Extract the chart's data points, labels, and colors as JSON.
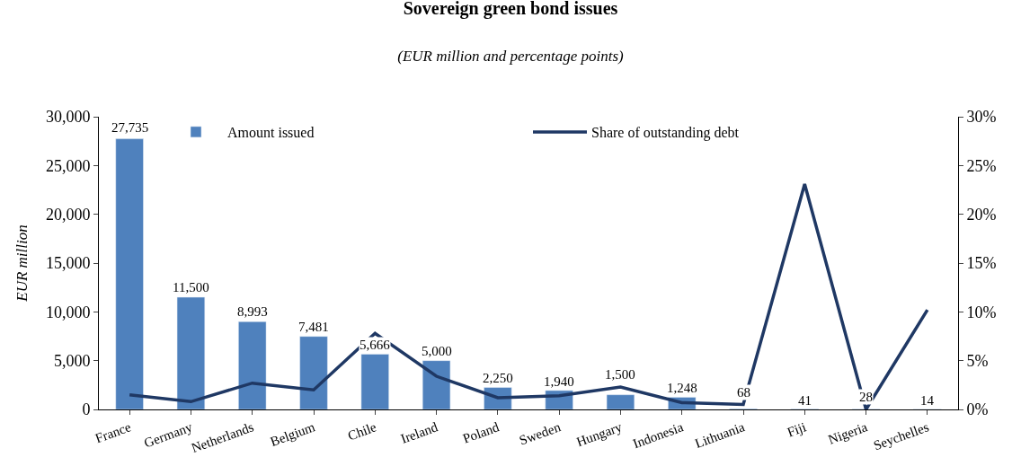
{
  "chart_data": {
    "type": "bar",
    "title": "Sovereign green bond issues",
    "subtitle": "(EUR million and percentage points)",
    "ylabel": "EUR million",
    "categories": [
      "France",
      "Germany",
      "Netherlands",
      "Belgium",
      "Chile",
      "Ireland",
      "Poland",
      "Sweden",
      "Hungary",
      "Indonesia",
      "Lithuania",
      "Fiji",
      "Nigeria",
      "Seychelles"
    ],
    "series": [
      {
        "name": "Amount issued",
        "color": "#4f81bd",
        "values": [
          27735,
          11500,
          8993,
          7481,
          5666,
          5000,
          2250,
          1940,
          1500,
          1248,
          68,
          41,
          28,
          14
        ],
        "value_labels": [
          "27,735",
          "11,500",
          "8,993",
          "7,481",
          "5,666",
          "5,000",
          "2,250",
          "1,940",
          "1,500",
          "1,248",
          "68",
          "41",
          "28",
          "14"
        ]
      },
      {
        "name": "Share of outstanding debt",
        "type": "line",
        "axis": "y2",
        "color": "#1f3864",
        "values": [
          1.5,
          0.8,
          2.7,
          2.0,
          7.8,
          3.4,
          1.2,
          1.4,
          2.3,
          0.7,
          0.5,
          23.1,
          0.0,
          10.2
        ]
      }
    ],
    "ylim": [
      0,
      30000
    ],
    "yticks": [
      {
        "value": 0,
        "label": "0"
      },
      {
        "value": 5000,
        "label": "5,000"
      },
      {
        "value": 10000,
        "label": "10,000"
      },
      {
        "value": 15000,
        "label": "15,000"
      },
      {
        "value": 20000,
        "label": "20,000"
      },
      {
        "value": 25000,
        "label": "25,000"
      },
      {
        "value": 30000,
        "label": "30,000"
      }
    ],
    "y2lim": [
      0,
      30
    ],
    "y2ticks": [
      {
        "value": 0,
        "label": "0%"
      },
      {
        "value": 5,
        "label": "5%"
      },
      {
        "value": 10,
        "label": "10%"
      },
      {
        "value": 15,
        "label": "15%"
      },
      {
        "value": 20,
        "label": "20%"
      },
      {
        "value": 25,
        "label": "25%"
      },
      {
        "value": 30,
        "label": "30%"
      }
    ],
    "legend": "top",
    "marker": "none",
    "line_style": "solid"
  }
}
